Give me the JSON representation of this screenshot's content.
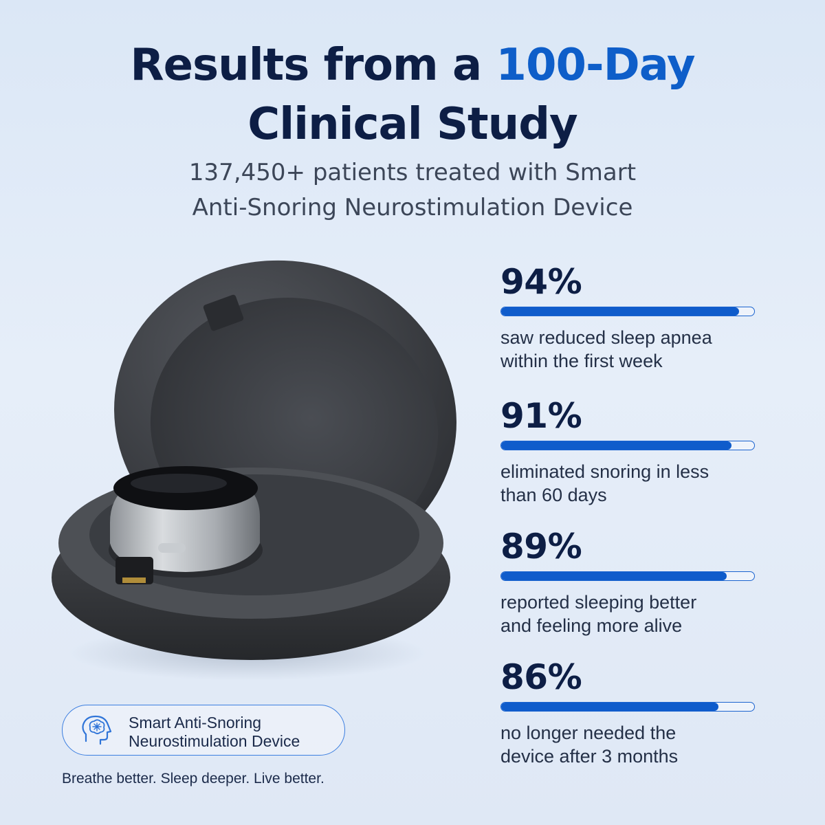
{
  "header": {
    "title_line1_part1": "Results from a ",
    "title_line1_highlight": "100-Day",
    "title_line2": "Clinical Study",
    "subtitle_line1": "137,450+ patients treated with Smart",
    "subtitle_line2": "Anti-Snoring Neurostimulation Device"
  },
  "stats": [
    {
      "value": "94%",
      "fill": 0.94,
      "desc_line1": "saw reduced sleep apnea",
      "desc_line2": "within the first week"
    },
    {
      "value": "91%",
      "fill": 0.91,
      "desc_line1": "eliminated snoring in less",
      "desc_line2": "than 60 days"
    },
    {
      "value": "89%",
      "fill": 0.89,
      "desc_line1": "reported sleeping better",
      "desc_line2": "and feeling more alive"
    },
    {
      "value": "86%",
      "fill": 0.86,
      "desc_line1": "no longer needed the",
      "desc_line2": "device after 3 months"
    }
  ],
  "badge": {
    "icon": "brain-head-icon",
    "line1": "Smart Anti-Snoring",
    "line2": "Neurostimulation Device"
  },
  "tagline": "Breathe better. Sleep deeper. Live better.",
  "colors": {
    "accent": "#0e5ec9",
    "navy": "#0d1e45",
    "case": "#3a3c41",
    "background": "#dfe8f5"
  }
}
